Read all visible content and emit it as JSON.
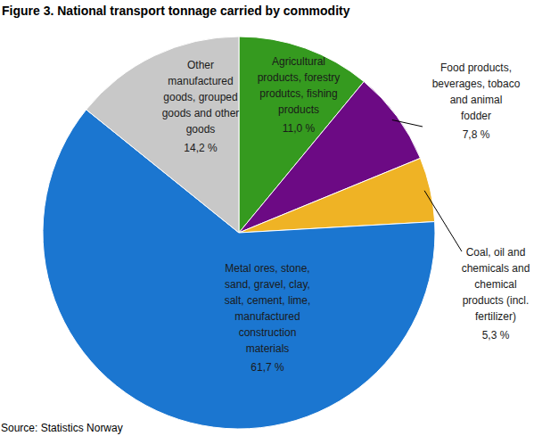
{
  "chart_data": {
    "type": "pie",
    "title": "Figure 3. National transport tonnage carried by commodity",
    "categories": [
      "Agricultural products, forestry produtcs, fishing products",
      "Food products, beverages, tobaco and animal fodder",
      "Coal, oil and chemicals and chemical products (incl. fertilizer)",
      "Metal ores, stone, sand, gravel, clay, salt, cement, lime, manufactured construction materials",
      "Other manufactured goods, grouped goods and other goods"
    ],
    "values": [
      11.0,
      7.8,
      5.3,
      61.7,
      14.2
    ],
    "value_labels": [
      "11,0 %",
      "7,8 %",
      "5,3 %",
      "61,7 %",
      "14,2 %"
    ],
    "colors": [
      "#359a1f",
      "#6c0a84",
      "#efb325",
      "#1b76d0",
      "#c8c8c8"
    ],
    "data_labels": true,
    "source": "Source: Statistics Norway"
  }
}
